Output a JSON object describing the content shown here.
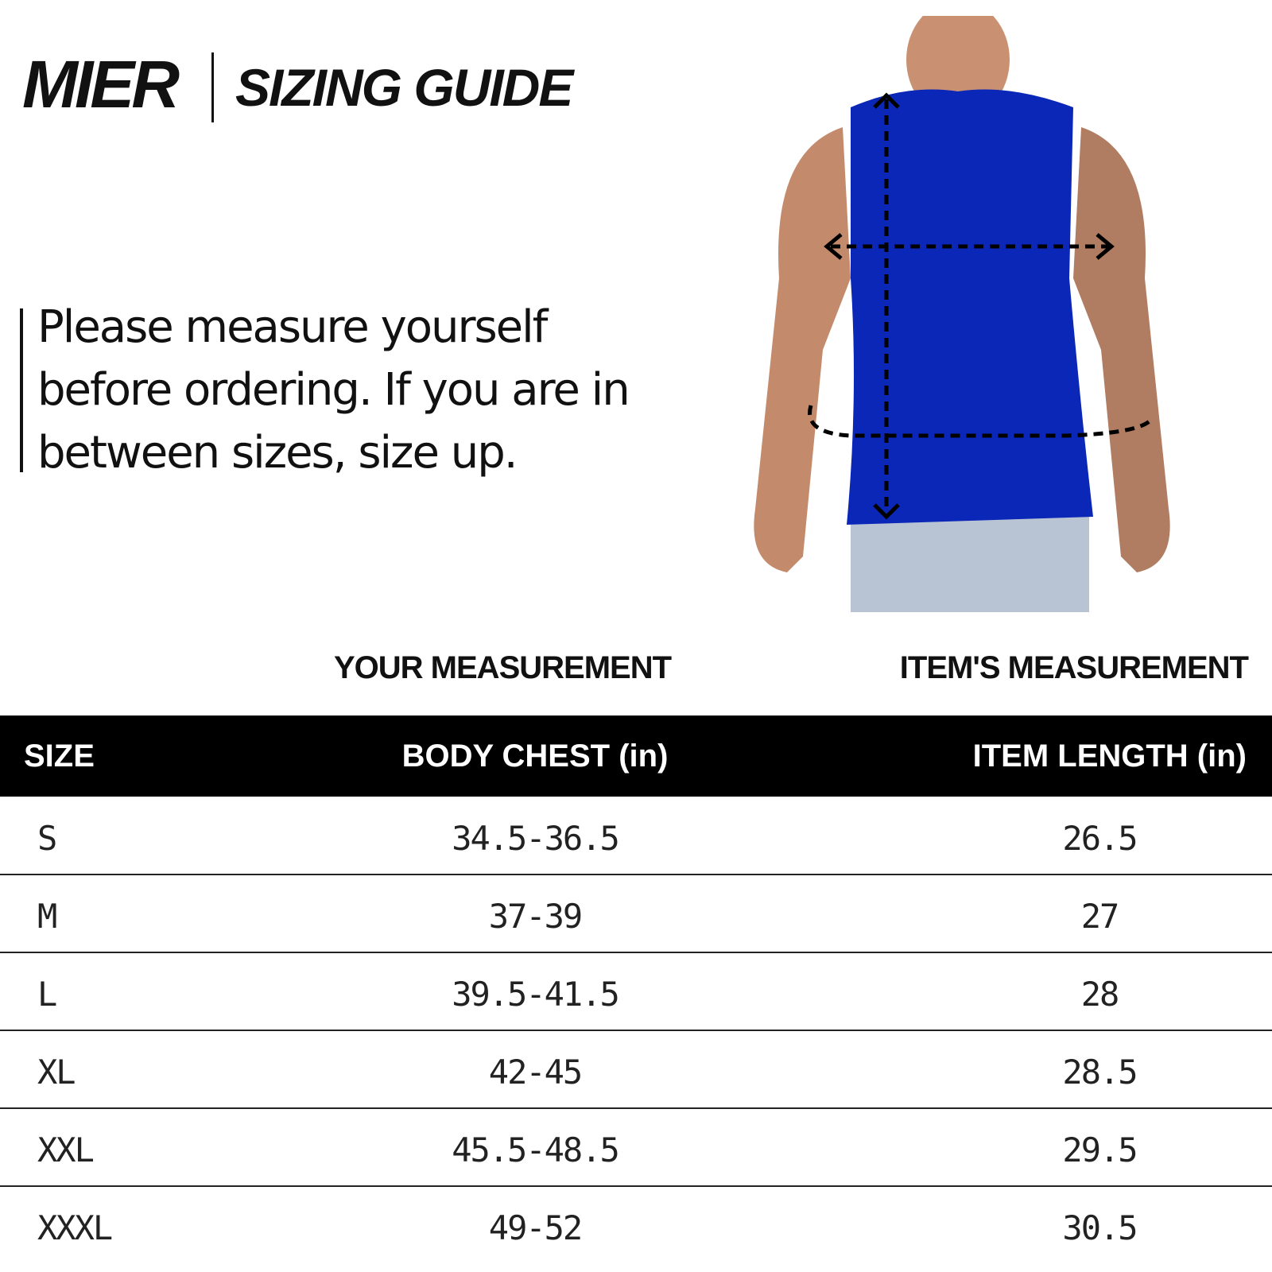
{
  "header": {
    "brand": "MIER",
    "title": "SIZING GUIDE"
  },
  "note": "Please measure yourself before ordering. If you are in between sizes, size up.",
  "table": {
    "group_headers": [
      "YOUR MEASUREMENT",
      "ITEM'S MEASUREMENT"
    ],
    "columns": [
      "SIZE",
      "BODY CHEST (in)",
      "ITEM LENGTH (in)"
    ],
    "rows": [
      [
        "S",
        "34.5-36.5",
        "26.5"
      ],
      [
        "M",
        "37-39",
        "27"
      ],
      [
        "L",
        "39.5-41.5",
        "28"
      ],
      [
        "XL",
        "42-45",
        "28.5"
      ],
      [
        "XXL",
        "45.5-48.5",
        "29.5"
      ],
      [
        "XXXL",
        "49-52",
        "30.5"
      ]
    ]
  }
}
